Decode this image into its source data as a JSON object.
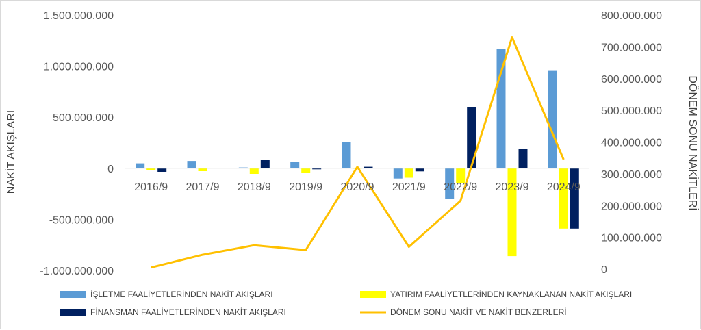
{
  "chart_data": {
    "type": "bar",
    "categories": [
      "2016/9",
      "2017/9",
      "2018/9",
      "2019/9",
      "2020/9",
      "2021/9",
      "2022/9",
      "2023/9",
      "2024/9"
    ],
    "series": [
      {
        "name": "İŞLETME FAALİYETLERİNDEN NAKİT AKIŞLARI",
        "type": "bar",
        "axis": "left",
        "color": "#5B9BD5",
        "values": [
          48000000,
          72000000,
          8000000,
          60000000,
          255000000,
          -100000000,
          -300000000,
          1170000000,
          960000000
        ]
      },
      {
        "name": "YATIRIM FAALİYETLERİNDEN KAYNAKLANAN NAKİT AKIŞLARI",
        "type": "bar",
        "axis": "left",
        "color": "#FFFF00",
        "values": [
          -18000000,
          -28000000,
          -55000000,
          -45000000,
          -4000000,
          -92000000,
          -145000000,
          -860000000,
          -590000000
        ]
      },
      {
        "name": "FİNANSMAN FAALİYETLERİNDEN NAKİT AKIŞLARI",
        "type": "bar",
        "axis": "left",
        "color": "#002060",
        "values": [
          -35000000,
          0,
          85000000,
          -10000000,
          15000000,
          -30000000,
          600000000,
          190000000,
          -590000000
        ]
      },
      {
        "name": "DÖNEM SONU NAKİT VE NAKİT BENZERLERİ",
        "type": "line",
        "axis": "right",
        "color": "#FFC000",
        "values": [
          5000000,
          45000000,
          75000000,
          60000000,
          322000000,
          70000000,
          215000000,
          730000000,
          345000000
        ]
      }
    ],
    "ylabel": "NAKİT AKIŞLARI",
    "y2label": "DÖNEM SONU NAKİTLERİ",
    "ylim": [
      -1000000000,
      1500000000
    ],
    "y2lim": [
      0,
      800000000
    ],
    "yticks": [
      1500000000,
      1000000000,
      500000000,
      0,
      -500000000,
      -1000000000
    ],
    "yticklabels": [
      "1.500.000.000",
      "1.000.000.000",
      "500.000.000",
      "0",
      "-500.000.000",
      "-1.000.000.000"
    ],
    "y2ticks": [
      800000000,
      700000000,
      600000000,
      500000000,
      400000000,
      300000000,
      200000000,
      100000000,
      0
    ],
    "y2ticklabels": [
      "800.000.000",
      "700.000.000",
      "600.000.000",
      "500.000.000",
      "400.000.000",
      "300.000.000",
      "200.000.000",
      "100.000.000",
      "0"
    ],
    "grid": false,
    "legend_position": "bottom"
  }
}
